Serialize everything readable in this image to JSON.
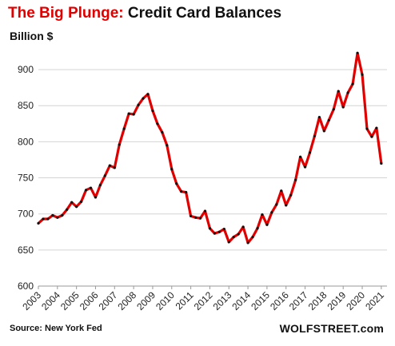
{
  "title_red": "The Big Plunge:",
  "title_black": " Credit Card Balances",
  "source": "Source: New York Fed",
  "brand": "WOLFSTREET.com",
  "chart_data": {
    "type": "line",
    "ylabel": "Billion $",
    "ylim": [
      600,
      930
    ],
    "yticks": [
      600,
      650,
      700,
      750,
      800,
      850,
      900
    ],
    "xlim": [
      2003,
      2021.3
    ],
    "xticks": [
      2003,
      2004,
      2005,
      2006,
      2007,
      2008,
      2009,
      2010,
      2011,
      2012,
      2013,
      2014,
      2015,
      2016,
      2017,
      2018,
      2019,
      2020,
      2021
    ],
    "grid": "horizontal",
    "line_color": "#e00000",
    "marker_color": "#111111",
    "x": [
      2003.0,
      2003.25,
      2003.5,
      2003.75,
      2004.0,
      2004.25,
      2004.5,
      2004.75,
      2005.0,
      2005.25,
      2005.5,
      2005.75,
      2006.0,
      2006.25,
      2006.5,
      2006.75,
      2007.0,
      2007.25,
      2007.5,
      2007.75,
      2008.0,
      2008.25,
      2008.5,
      2008.75,
      2009.0,
      2009.25,
      2009.5,
      2009.75,
      2010.0,
      2010.25,
      2010.5,
      2010.75,
      2011.0,
      2011.25,
      2011.5,
      2011.75,
      2012.0,
      2012.25,
      2012.5,
      2012.75,
      2013.0,
      2013.25,
      2013.5,
      2013.75,
      2014.0,
      2014.25,
      2014.5,
      2014.75,
      2015.0,
      2015.25,
      2015.5,
      2015.75,
      2016.0,
      2016.25,
      2016.5,
      2016.75,
      2017.0,
      2017.25,
      2017.5,
      2017.75,
      2018.0,
      2018.25,
      2018.5,
      2018.75,
      2019.0,
      2019.25,
      2019.5,
      2019.75,
      2020.0,
      2020.25,
      2020.5,
      2020.75,
      2021.0
    ],
    "values": [
      687,
      693,
      693,
      698,
      695,
      698,
      706,
      716,
      710,
      717,
      733,
      736,
      723,
      740,
      753,
      767,
      764,
      796,
      818,
      839,
      838,
      851,
      860,
      866,
      843,
      825,
      813,
      795,
      762,
      742,
      731,
      730,
      697,
      695,
      694,
      704,
      680,
      673,
      675,
      679,
      661,
      668,
      672,
      682,
      660,
      668,
      680,
      699,
      685,
      702,
      713,
      732,
      712,
      726,
      747,
      779,
      765,
      785,
      808,
      834,
      815,
      830,
      845,
      870,
      848,
      868,
      880,
      923,
      893,
      818,
      807,
      819,
      770
    ]
  }
}
